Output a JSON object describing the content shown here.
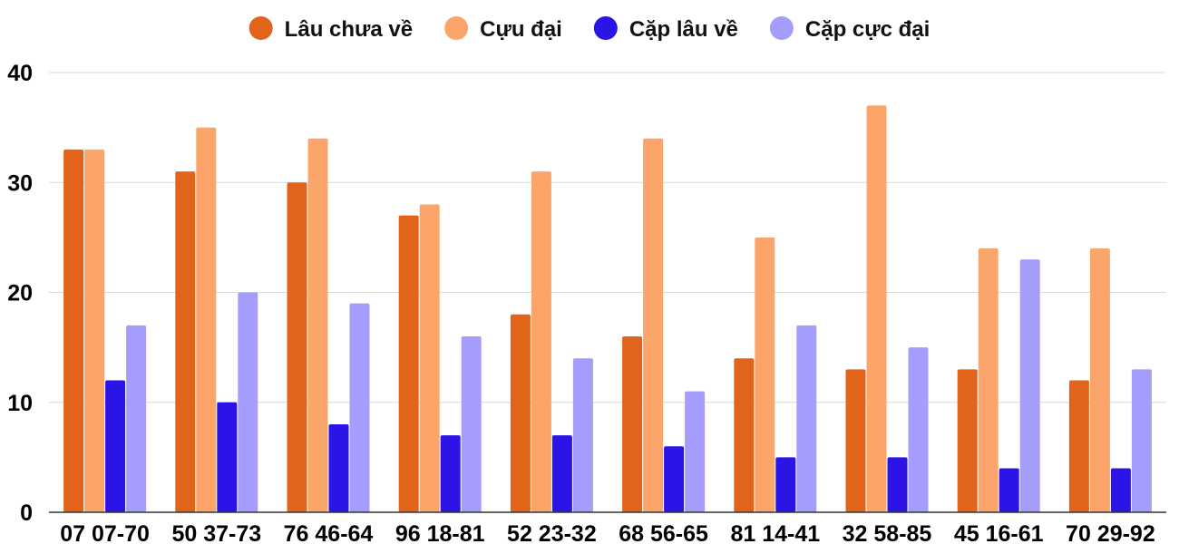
{
  "chart_data": {
    "type": "bar",
    "title": "",
    "xlabel": "",
    "ylabel": "",
    "ylim": [
      0,
      40
    ],
    "yticks": [
      0,
      10,
      20,
      30,
      40
    ],
    "grid": true,
    "legend_position": "top",
    "categories": [
      "07 07-70",
      "50 37-73",
      "76 46-64",
      "96 18-81",
      "52 23-32",
      "68 56-65",
      "81 14-41",
      "32 58-85",
      "45 16-61",
      "70 29-92"
    ],
    "series": [
      {
        "name": "Lâu chưa về",
        "color": "#e2641a",
        "values": [
          33,
          31,
          30,
          27,
          18,
          16,
          14,
          13,
          13,
          12
        ]
      },
      {
        "name": "Cựu đại",
        "color": "#fca56b",
        "values": [
          33,
          35,
          34,
          28,
          31,
          34,
          25,
          37,
          24,
          24
        ]
      },
      {
        "name": "Cặp lâu về",
        "color": "#2a14e6",
        "values": [
          12,
          10,
          8,
          7,
          7,
          6,
          5,
          5,
          4,
          4
        ]
      },
      {
        "name": "Cặp cực đại",
        "color": "#a59dfc",
        "values": [
          17,
          20,
          19,
          16,
          14,
          11,
          17,
          15,
          23,
          13
        ]
      }
    ]
  }
}
